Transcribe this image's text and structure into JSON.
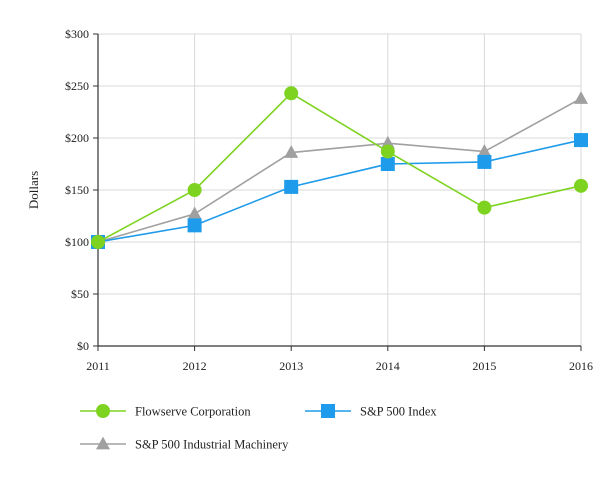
{
  "chart_data": {
    "type": "line",
    "title": "",
    "xlabel": "",
    "ylabel": "Dollars",
    "categories": [
      "2011",
      "2012",
      "2013",
      "2014",
      "2015",
      "2016"
    ],
    "ylim": [
      0,
      300
    ],
    "ytick_values": [
      0,
      50,
      100,
      150,
      200,
      250,
      300
    ],
    "ytick_labels": [
      "$0",
      "$50",
      "$100",
      "$150",
      "$200",
      "$250",
      "$300"
    ],
    "grid": true,
    "legend_position": "bottom",
    "series": [
      {
        "name": "Flowserve Corporation",
        "marker": "circle",
        "color": "#7ED321",
        "values": [
          100,
          150,
          243,
          187,
          133,
          154
        ]
      },
      {
        "name": "S&P 500 Index",
        "marker": "square",
        "color": "#1E9BEA",
        "values": [
          100,
          116,
          153,
          175,
          177,
          198
        ]
      },
      {
        "name": "S&P 500 Industrial Machinery",
        "marker": "triangle",
        "color": "#A0A0A0",
        "values": [
          100,
          127,
          186,
          195,
          187,
          238
        ]
      }
    ]
  }
}
